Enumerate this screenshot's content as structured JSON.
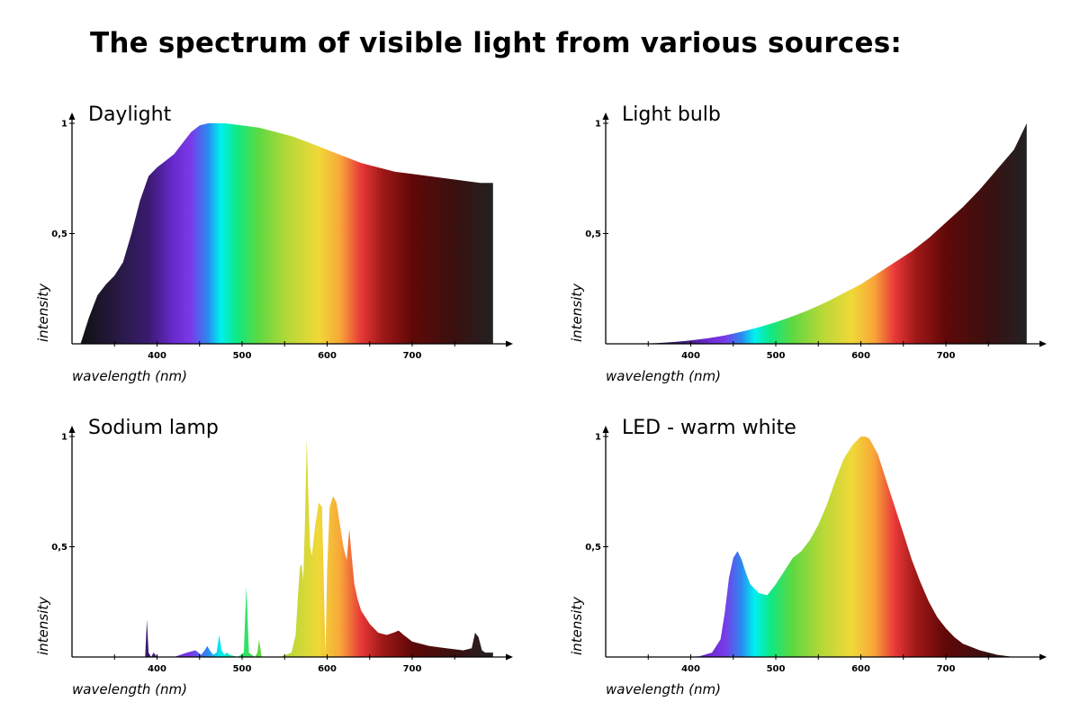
{
  "title": "The spectrum of visible light from various sources:",
  "colors": {
    "spectrum": [
      "#111111",
      "#2a1a4a",
      "#3a1a70",
      "#6a2ad0",
      "#7a3ae8",
      "#2a8af0",
      "#00f0f0",
      "#10e880",
      "#60d840",
      "#b8d838",
      "#f0d838",
      "#f8a838",
      "#e83838",
      "#a01818",
      "#600808",
      "#3a1010",
      "#222222"
    ]
  },
  "chart_data": [
    {
      "type": "area",
      "title": "Daylight",
      "xlabel": "wavelength (nm)",
      "ylabel": "intensity",
      "xlim": [
        300,
        800
      ],
      "ylim": [
        0,
        1
      ],
      "x_ticks": [
        400,
        500,
        600,
        700
      ],
      "y_ticks": [
        {
          "value": 0.5,
          "label": "0,5"
        },
        {
          "value": 1,
          "label": "1"
        }
      ],
      "x": [
        310,
        320,
        330,
        340,
        350,
        360,
        370,
        380,
        390,
        400,
        410,
        420,
        430,
        440,
        450,
        460,
        470,
        480,
        500,
        520,
        540,
        560,
        580,
        600,
        620,
        640,
        660,
        680,
        700,
        720,
        740,
        760,
        780,
        795
      ],
      "y": [
        0.0,
        0.12,
        0.22,
        0.27,
        0.31,
        0.37,
        0.5,
        0.65,
        0.76,
        0.8,
        0.83,
        0.86,
        0.91,
        0.96,
        0.99,
        1.0,
        1.0,
        1.0,
        0.99,
        0.98,
        0.96,
        0.94,
        0.91,
        0.88,
        0.85,
        0.82,
        0.8,
        0.78,
        0.77,
        0.76,
        0.75,
        0.74,
        0.73,
        0.73
      ]
    },
    {
      "type": "area",
      "title": "Light bulb",
      "xlabel": "wavelength (nm)",
      "ylabel": "intensity",
      "xlim": [
        300,
        800
      ],
      "ylim": [
        0,
        1
      ],
      "x_ticks": [
        400,
        500,
        600,
        700
      ],
      "y_ticks": [
        {
          "value": 0.5,
          "label": "0,5"
        },
        {
          "value": 1,
          "label": "1"
        }
      ],
      "x": [
        340,
        360,
        380,
        400,
        420,
        440,
        460,
        480,
        500,
        520,
        540,
        560,
        580,
        600,
        620,
        640,
        660,
        680,
        700,
        720,
        740,
        760,
        780,
        795
      ],
      "y": [
        0.0,
        0.003,
        0.008,
        0.015,
        0.025,
        0.038,
        0.055,
        0.075,
        0.098,
        0.125,
        0.155,
        0.19,
        0.23,
        0.27,
        0.32,
        0.37,
        0.42,
        0.48,
        0.55,
        0.62,
        0.7,
        0.79,
        0.88,
        1.0
      ]
    },
    {
      "type": "area",
      "title": "Sodium lamp",
      "xlabel": "wavelength (nm)",
      "ylabel": "intensity",
      "xlim": [
        300,
        800
      ],
      "ylim": [
        0,
        1
      ],
      "x_ticks": [
        400,
        500,
        600,
        700
      ],
      "y_ticks": [
        {
          "value": 0.5,
          "label": "0,5"
        },
        {
          "value": 1,
          "label": "1"
        }
      ],
      "x": [
        380,
        386,
        388,
        390,
        393,
        396,
        400,
        420,
        435,
        445,
        452,
        456,
        459,
        462,
        466,
        470,
        473,
        476,
        479,
        482,
        485,
        495,
        502,
        505,
        508,
        515,
        518,
        520,
        523,
        530,
        545,
        558,
        563,
        566,
        568,
        570,
        572,
        574,
        576,
        578,
        580,
        582,
        586,
        590,
        594,
        596,
        598,
        600,
        603,
        607,
        611,
        615,
        619,
        623,
        626,
        629,
        632,
        636,
        640,
        650,
        660,
        670,
        678,
        684,
        690,
        700,
        720,
        740,
        760,
        770,
        774,
        778,
        782,
        786,
        795
      ],
      "y": [
        0.0,
        0.0,
        0.17,
        0.02,
        0.0,
        0.02,
        0.0,
        0.0,
        0.02,
        0.03,
        0.01,
        0.03,
        0.05,
        0.03,
        0.01,
        0.02,
        0.1,
        0.03,
        0.01,
        0.02,
        0.01,
        0.0,
        0.02,
        0.32,
        0.02,
        0.0,
        0.02,
        0.08,
        0.0,
        0.0,
        0.0,
        0.02,
        0.1,
        0.3,
        0.41,
        0.42,
        0.35,
        0.62,
        0.99,
        0.72,
        0.5,
        0.46,
        0.6,
        0.7,
        0.68,
        0.35,
        0.01,
        0.4,
        0.68,
        0.73,
        0.7,
        0.6,
        0.5,
        0.44,
        0.58,
        0.45,
        0.33,
        0.26,
        0.21,
        0.15,
        0.11,
        0.1,
        0.11,
        0.12,
        0.1,
        0.07,
        0.05,
        0.04,
        0.03,
        0.04,
        0.11,
        0.09,
        0.03,
        0.02,
        0.02
      ]
    },
    {
      "type": "area",
      "title": "LED - warm white",
      "xlabel": "wavelength (nm)",
      "ylabel": "intensity",
      "xlim": [
        300,
        800
      ],
      "ylim": [
        0,
        1
      ],
      "x_ticks": [
        400,
        500,
        600,
        700
      ],
      "y_ticks": [
        {
          "value": 0.5,
          "label": "0,5"
        },
        {
          "value": 1,
          "label": "1"
        }
      ],
      "x": [
        390,
        410,
        425,
        435,
        440,
        445,
        450,
        455,
        460,
        465,
        470,
        480,
        490,
        500,
        510,
        520,
        530,
        540,
        550,
        560,
        570,
        580,
        590,
        600,
        605,
        610,
        620,
        630,
        640,
        650,
        660,
        670,
        680,
        690,
        700,
        710,
        720,
        740,
        760,
        780
      ],
      "y": [
        0.0,
        0.003,
        0.02,
        0.08,
        0.2,
        0.36,
        0.45,
        0.48,
        0.44,
        0.38,
        0.33,
        0.29,
        0.28,
        0.33,
        0.39,
        0.45,
        0.48,
        0.53,
        0.6,
        0.69,
        0.8,
        0.9,
        0.96,
        1.0,
        1.0,
        0.99,
        0.92,
        0.8,
        0.68,
        0.56,
        0.44,
        0.34,
        0.25,
        0.18,
        0.13,
        0.09,
        0.06,
        0.03,
        0.01,
        0.0
      ]
    }
  ]
}
